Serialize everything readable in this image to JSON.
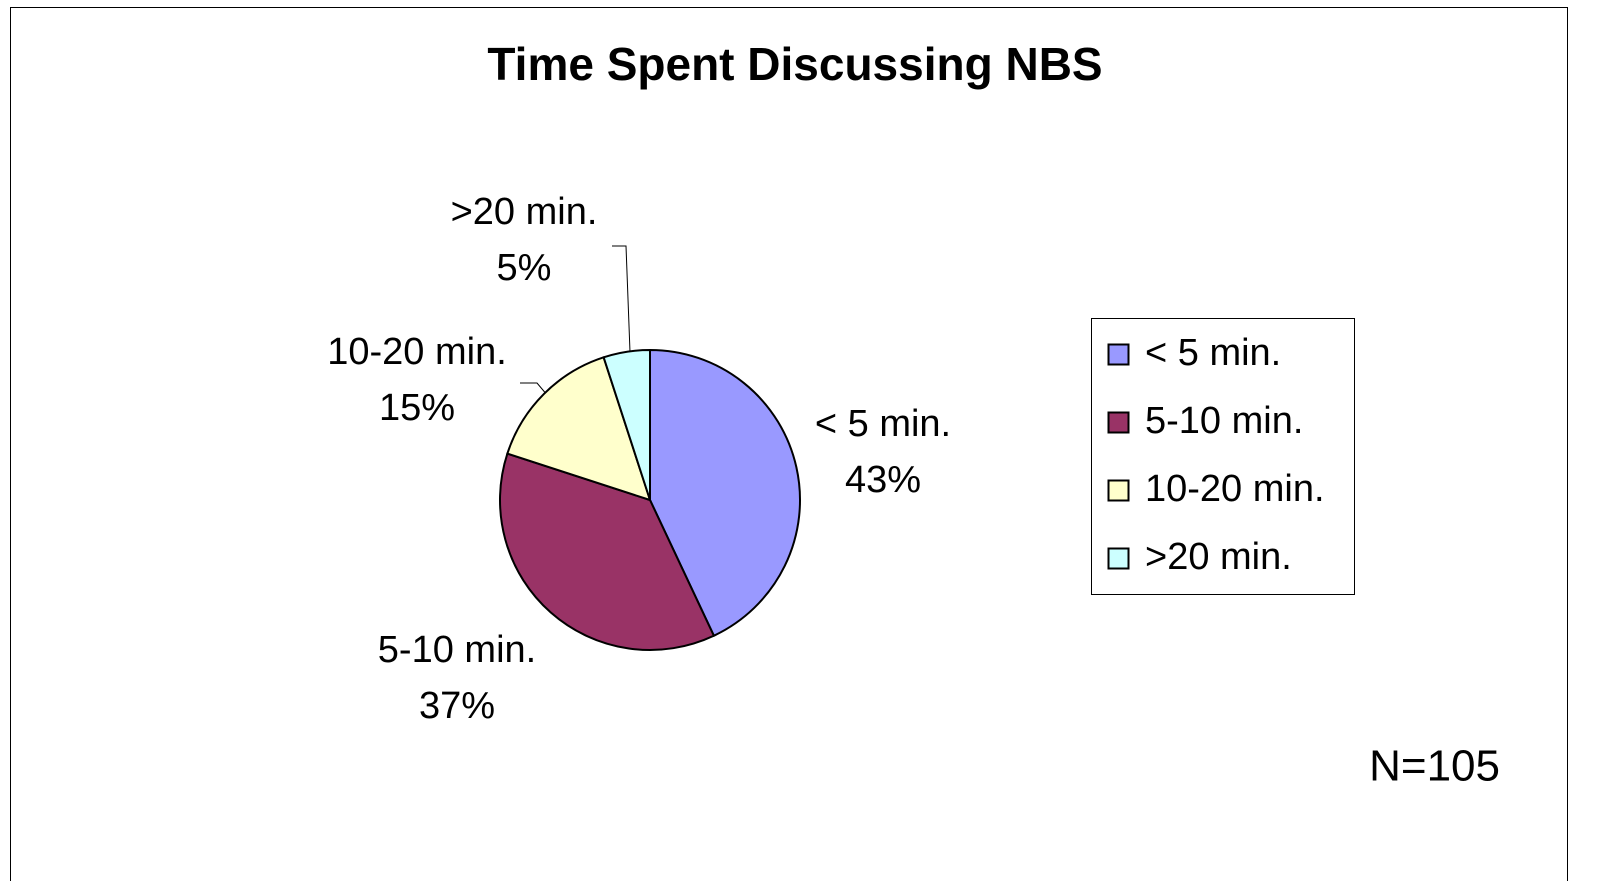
{
  "chart_data": {
    "type": "pie",
    "title": "Time Spent Discussing NBS",
    "categories": [
      "< 5 min.",
      "5-10 min.",
      "10-20 min.",
      ">20 min."
    ],
    "values": [
      43,
      37,
      15,
      5
    ],
    "value_labels": [
      "43%",
      "37%",
      "15%",
      "5%"
    ],
    "colors": [
      "#9999ff",
      "#993366",
      "#ffffcc",
      "#ccffff"
    ],
    "legend": "right",
    "annotation": "N=105"
  }
}
